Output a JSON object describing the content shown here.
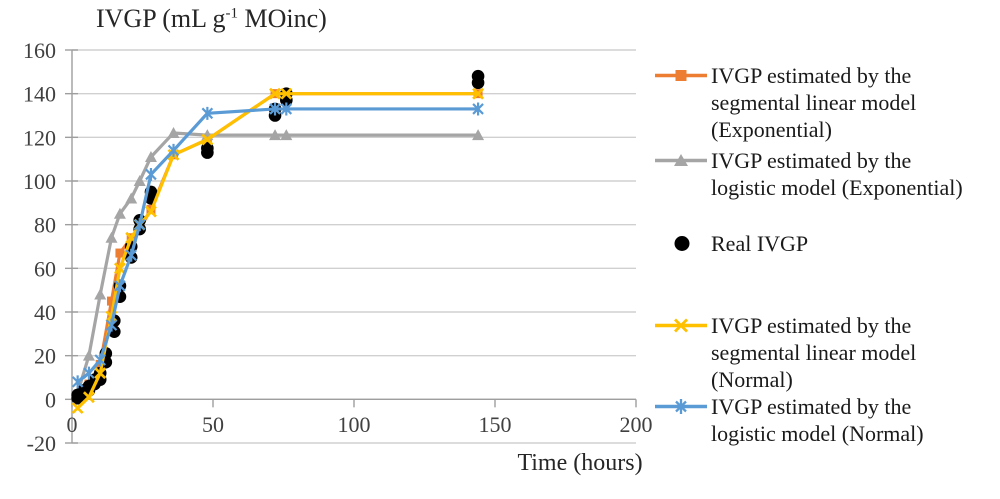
{
  "chart_data": {
    "type": "line",
    "title": {
      "prefix": "IVGP (mL g",
      "superscript": "-1",
      "suffix": " MOinc)"
    },
    "xlabel": "Time (hours)",
    "x_axis": {
      "min": 0,
      "max": 200,
      "ticks": [
        0,
        50,
        100,
        150,
        200
      ]
    },
    "y_axis": {
      "min": -20,
      "max": 160,
      "ticks": [
        160,
        140,
        120,
        100,
        80,
        60,
        40,
        20,
        0,
        -20
      ]
    },
    "grid": "horizontal-only",
    "legend_position": "right",
    "grid_color": "#d0d0d0",
    "axis_color": "#9e9e9e",
    "tick_label_color": "#404040",
    "series": [
      {
        "name": "IVGP estimated by the segmental linear model (Exponential)",
        "label_lines": [
          "IVGP estimated by the",
          "segmental linear model",
          "(Exponential)"
        ],
        "color": "#ED7D31",
        "marker": "square",
        "line": true,
        "x": [
          2,
          6,
          10,
          14,
          17,
          21,
          24,
          28,
          36,
          48,
          72,
          76,
          144
        ],
        "y": [
          1,
          7,
          16,
          45,
          67,
          74,
          78,
          87,
          112,
          119,
          140,
          140,
          140
        ]
      },
      {
        "name": "IVGP estimated by the logistic model (Exponential)",
        "label_lines": [
          "IVGP estimated by the",
          "logistic model (Exponential)"
        ],
        "color": "#A5A5A5",
        "marker": "triangle",
        "line": true,
        "x": [
          2,
          6,
          10,
          14,
          17,
          21,
          24,
          28,
          36,
          48,
          72,
          76,
          144
        ],
        "y": [
          3,
          20,
          48,
          74,
          85,
          92,
          100,
          111,
          122,
          121,
          121,
          121,
          121
        ]
      },
      {
        "name": "Real IVGP",
        "label_lines": [
          "Real IVGP"
        ],
        "color": "#000000",
        "marker": "circle",
        "line": false,
        "x": [
          2,
          2,
          4,
          4,
          6,
          6,
          8,
          8,
          10,
          10,
          12,
          12,
          15,
          15,
          17,
          17,
          21,
          21,
          24,
          24,
          28,
          28,
          48,
          48,
          72,
          72,
          76,
          76,
          144,
          144
        ],
        "y": [
          0.5,
          2,
          2,
          4,
          4,
          6,
          7,
          9,
          9,
          12,
          17,
          21,
          31,
          36,
          47,
          52,
          65,
          70,
          78,
          82,
          92,
          95,
          113,
          115,
          130,
          133,
          137,
          140,
          145,
          148
        ]
      },
      {
        "name": "IVGP estimated by the segmental linear model (Normal)",
        "label_lines": [
          "IVGP estimated by the",
          "segmental linear model",
          "(Normal)"
        ],
        "color": "#FFC000",
        "marker": "x",
        "line": true,
        "x": [
          2,
          6,
          10,
          14,
          17,
          21,
          24,
          28,
          36,
          48,
          72,
          76,
          144
        ],
        "y": [
          -4,
          1,
          12,
          38,
          60,
          74,
          80,
          86,
          112,
          119,
          140,
          140,
          140
        ]
      },
      {
        "name": "IVGP estimated by the logistic model (Normal)",
        "label_lines": [
          "IVGP estimated by the",
          "logistic model (Normal)"
        ],
        "color": "#5B9BD5",
        "marker": "asterisk",
        "line": true,
        "x": [
          2,
          6,
          10,
          14,
          17,
          21,
          24,
          28,
          36,
          48,
          72,
          76,
          144
        ],
        "y": [
          8,
          12,
          18,
          34,
          52,
          66,
          80,
          103,
          114,
          131,
          133,
          133,
          133
        ]
      }
    ]
  }
}
